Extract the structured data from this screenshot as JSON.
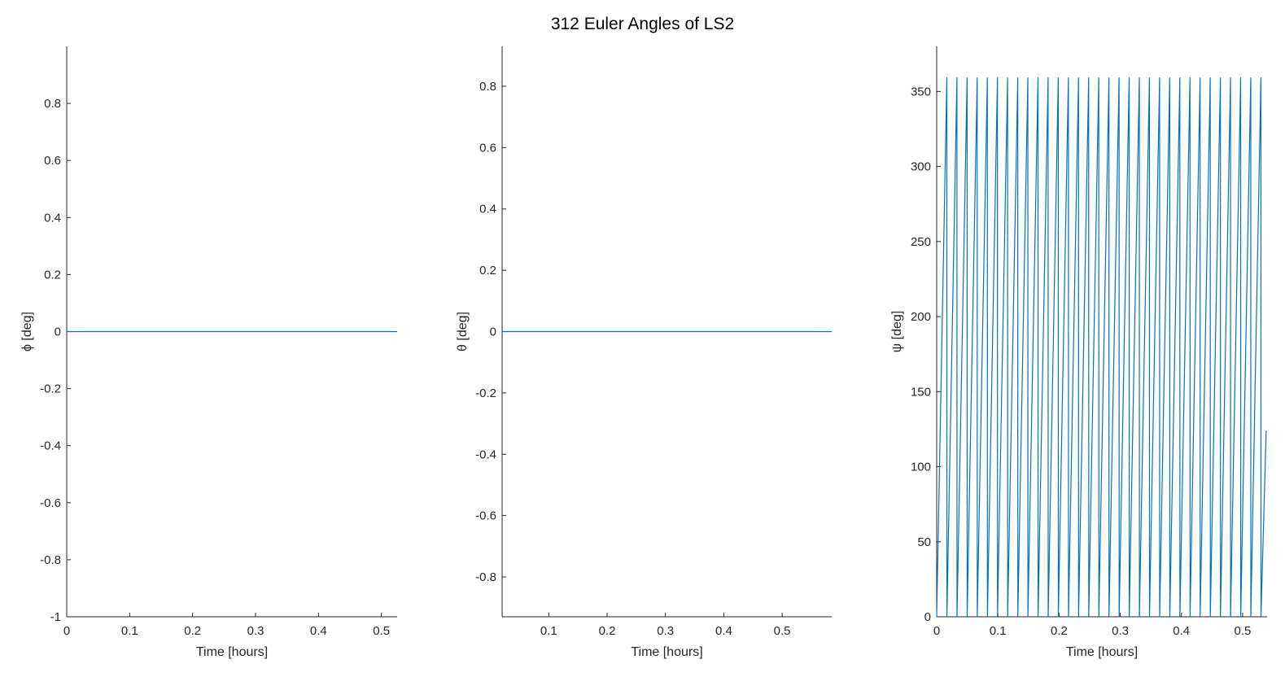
{
  "figure": {
    "title": "312 Euler Angles of LS2"
  },
  "colors": {
    "series": "#0072BD",
    "axis": "#262626"
  },
  "chart_data": [
    {
      "type": "line",
      "xlabel": "Time [hours]",
      "ylabel": "ϕ [deg]",
      "xlim": [
        0,
        0.525
      ],
      "ylim": [
        -1,
        1
      ],
      "xticks": [
        0,
        0.1,
        0.2,
        0.3,
        0.4,
        0.5
      ],
      "xtick_labels": [
        "0",
        "0.1",
        "0.2",
        "0.3",
        "0.4",
        "0.5"
      ],
      "yticks": [
        -1,
        -0.8,
        -0.6,
        -0.4,
        -0.2,
        0,
        0.2,
        0.4,
        0.6,
        0.8
      ],
      "ytick_labels": [
        "-1",
        "-0.8",
        "-0.6",
        "-0.4",
        "-0.2",
        "0",
        "0.2",
        "0.4",
        "0.6",
        "0.8"
      ],
      "grid": false,
      "series": [
        {
          "x": [
            0,
            0.525
          ],
          "y": [
            0,
            0
          ]
        }
      ]
    },
    {
      "type": "line",
      "xlabel": "Time [hours]",
      "ylabel": "θ [deg]",
      "xlim": [
        0.02,
        0.585
      ],
      "ylim": [
        -0.93,
        0.93
      ],
      "xticks": [
        0.1,
        0.2,
        0.3,
        0.4,
        0.5
      ],
      "xtick_labels": [
        "0.1",
        "0.2",
        "0.3",
        "0.4",
        "0.5"
      ],
      "yticks": [
        -0.8,
        -0.6,
        -0.4,
        -0.2,
        0,
        0.2,
        0.4,
        0.6,
        0.8
      ],
      "ytick_labels": [
        "-0.8",
        "-0.6",
        "-0.4",
        "-0.2",
        "0",
        "0.2",
        "0.4",
        "0.6",
        "0.8"
      ],
      "grid": false,
      "series": [
        {
          "x": [
            0.02,
            0.585
          ],
          "y": [
            0,
            0
          ]
        }
      ]
    },
    {
      "type": "line",
      "xlabel": "Time [hours]",
      "ylabel": "ψ [deg]",
      "xlim": [
        0,
        0.54
      ],
      "ylim": [
        0,
        380
      ],
      "xticks": [
        0,
        0.1,
        0.2,
        0.3,
        0.4,
        0.5
      ],
      "xtick_labels": [
        "0",
        "0.1",
        "0.2",
        "0.3",
        "0.4",
        "0.5"
      ],
      "yticks": [
        0,
        50,
        100,
        150,
        200,
        250,
        300,
        350
      ],
      "ytick_labels": [
        "0",
        "50",
        "100",
        "150",
        "200",
        "250",
        "300",
        "350"
      ],
      "grid": false,
      "series": [
        {
          "x": [
            0,
            0.0166,
            0.0167,
            0.0331,
            0.0332,
            0.0497,
            0.0498,
            0.0662,
            0.0663,
            0.0828,
            0.0829,
            0.0993,
            0.0994,
            0.1159,
            0.116,
            0.1325,
            0.1326,
            0.149,
            0.1491,
            0.1656,
            0.1657,
            0.1821,
            0.1822,
            0.1987,
            0.1988,
            0.2153,
            0.2154,
            0.2318,
            0.2319,
            0.2484,
            0.2485,
            0.2649,
            0.265,
            0.2815,
            0.2816,
            0.2981,
            0.2982,
            0.3146,
            0.3147,
            0.3312,
            0.3313,
            0.3477,
            0.3478,
            0.3643,
            0.3644,
            0.3809,
            0.381,
            0.3974,
            0.3975,
            0.414,
            0.4141,
            0.4305,
            0.4306,
            0.4471,
            0.4472,
            0.4637,
            0.4638,
            0.4802,
            0.4803,
            0.4968,
            0.4969,
            0.5133,
            0.5134,
            0.5299,
            0.53,
            0.5385
          ],
          "y": [
            0,
            359,
            0,
            359,
            0,
            359,
            0,
            359,
            0,
            359,
            0,
            359,
            0,
            359,
            0,
            359,
            0,
            359,
            0,
            359,
            0,
            359,
            0,
            359,
            0,
            359,
            0,
            359,
            0,
            359,
            0,
            359,
            0,
            359,
            0,
            359,
            0,
            359,
            0,
            359,
            0,
            359,
            0,
            359,
            0,
            359,
            0,
            359,
            0,
            359,
            0,
            359,
            0,
            359,
            0,
            359,
            0,
            359,
            0,
            359,
            0,
            359,
            0,
            359,
            0,
            124
          ]
        }
      ]
    }
  ]
}
